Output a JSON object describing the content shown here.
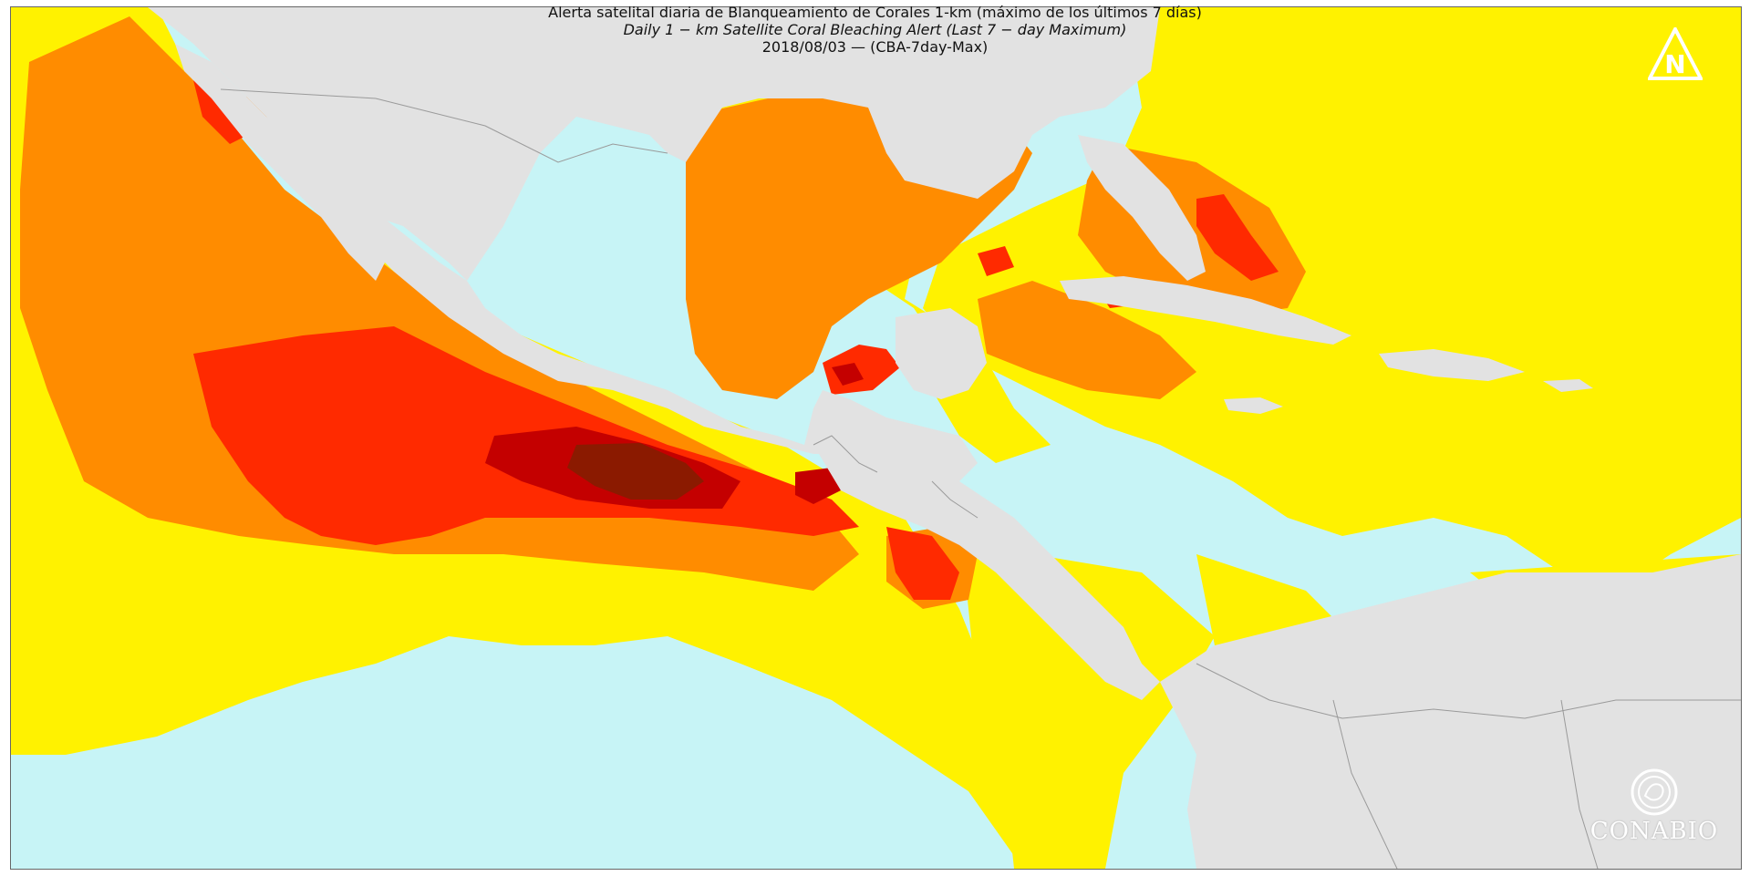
{
  "title": {
    "line1": "Alerta satelital diaria de Blanqueamiento de Corales 1-km (máximo de los últimos 7 días)",
    "line2": "Daily 1 − km Satellite Coral Bleaching Alert (Last 7 − day Maximum)",
    "line3": "2018/08/03 — (CBA-7day-Max)"
  },
  "colors": {
    "ocean_no_stress": "#c7f4f6",
    "watch": "#fff200",
    "warning": "#ff8c00",
    "alert_level_1": "#ff2a00",
    "alert_level_2": "#c40000",
    "alert_level_max": "#8b1a00",
    "land": "#e2e2e2",
    "borders": "#9a9a9a"
  },
  "logos": {
    "north_icon": "north-arrow-icon",
    "brand_text": "CONABIO",
    "brand_icon": "conabio-seal-icon"
  }
}
